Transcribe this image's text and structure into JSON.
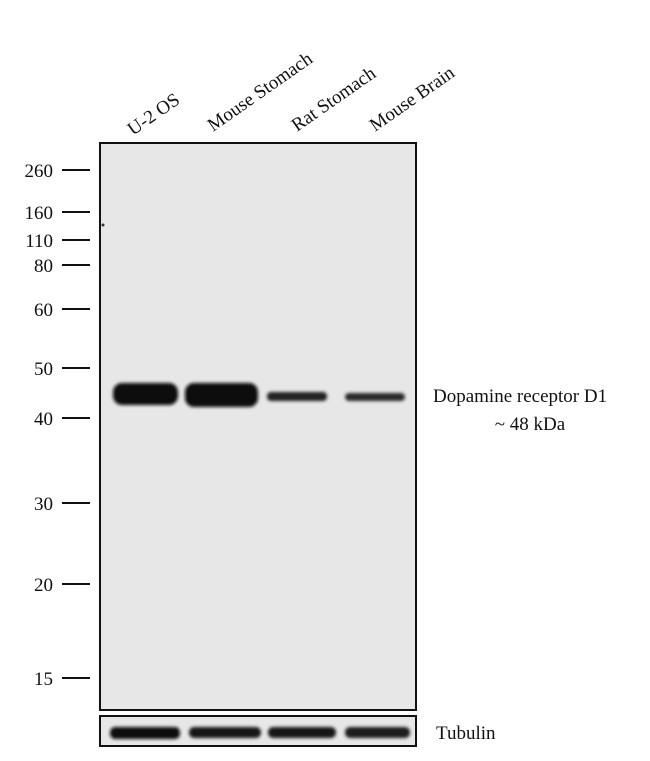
{
  "lanes": [
    "U-2 OS",
    "Mouse Stomach",
    "Rat Stomach",
    "Mouse Brain"
  ],
  "markers": [
    260,
    160,
    110,
    80,
    60,
    50,
    40,
    30,
    20,
    15
  ],
  "target": {
    "name": "Dopamine receptor D1",
    "size": "~ 48  kDa"
  },
  "loading_control": "Tubulin"
}
